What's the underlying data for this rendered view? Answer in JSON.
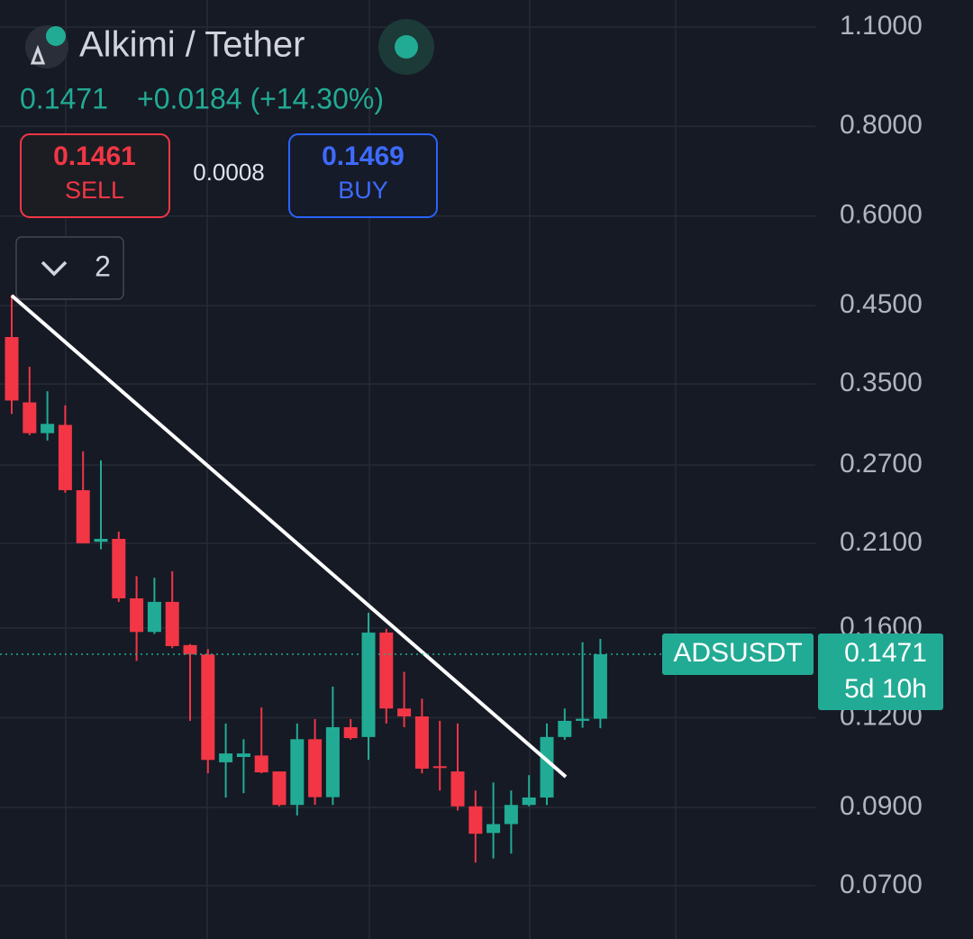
{
  "header": {
    "title": "Alkimi / Tether",
    "price": "0.1471",
    "change": "+0.0184 (+14.30%)",
    "sell_price": "0.1461",
    "sell_label": "SELL",
    "spread": "0.0008",
    "buy_price": "0.1469",
    "buy_label": "BUY",
    "indicators_count": "2"
  },
  "chart_data": {
    "type": "candlestick",
    "log_scale": true,
    "grid": true,
    "up_color": "#22ab94",
    "down_color": "#f23645",
    "ylim": [
      0.059,
      1.2
    ],
    "yticks": [
      {
        "value": 1.1,
        "label": "1.1000"
      },
      {
        "value": 0.8,
        "label": "0.8000"
      },
      {
        "value": 0.6,
        "label": "0.6000"
      },
      {
        "value": 0.45,
        "label": "0.4500"
      },
      {
        "value": 0.35,
        "label": "0.3500"
      },
      {
        "value": 0.27,
        "label": "0.2700"
      },
      {
        "value": 0.21,
        "label": "0.2100"
      },
      {
        "value": 0.16,
        "label": "0.1600"
      },
      {
        "value": 0.12,
        "label": "0.1200"
      },
      {
        "value": 0.09,
        "label": "0.0900"
      },
      {
        "value": 0.07,
        "label": "0.0700"
      }
    ],
    "last_price": 0.1471,
    "countdown": "5d 10h",
    "series": [
      {
        "name": "ADSUSDT",
        "open": [
          0.407,
          0.33,
          0.299,
          0.307,
          0.249,
          0.211,
          0.213,
          0.176,
          0.158,
          0.174,
          0.1515,
          0.147,
          0.104,
          0.1058,
          0.1063,
          0.101,
          0.0907,
          0.112,
          0.093,
          0.1164,
          0.1128,
          0.1577,
          0.1236,
          0.1205,
          0.1027,
          0.101,
          0.0903,
          0.0829,
          0.0853,
          0.0907,
          0.0929,
          0.1128,
          0.1188,
          0.1196
        ],
        "high": [
          0.466,
          0.37,
          0.342,
          0.327,
          0.282,
          0.274,
          0.218,
          0.189,
          0.188,
          0.192,
          0.152,
          0.1495,
          0.1178,
          0.112,
          0.124,
          0.101,
          0.1178,
          0.1195,
          0.1326,
          0.1195,
          0.168,
          0.1595,
          0.139,
          0.1276,
          0.1188,
          0.1178,
          0.095,
          0.0975,
          0.095,
          0.0998,
          0.1178,
          0.1236,
          0.1529,
          0.1545
        ],
        "low": [
          0.318,
          0.297,
          0.292,
          0.247,
          0.21,
          0.206,
          0.174,
          0.144,
          0.157,
          0.15,
          0.1188,
          0.1004,
          0.0929,
          0.0942,
          0.1004,
          0.0903,
          0.0877,
          0.0907,
          0.0907,
          0.1118,
          0.1048,
          0.1178,
          0.1164,
          0.1004,
          0.095,
          0.0891,
          0.0754,
          0.0764,
          0.0776,
          0.0903,
          0.0907,
          0.1118,
          0.1162,
          0.116
        ],
        "close": [
          0.332,
          0.299,
          0.308,
          0.249,
          0.21,
          0.213,
          0.176,
          0.158,
          0.174,
          0.151,
          0.147,
          0.1048,
          0.107,
          0.107,
          0.1007,
          0.0907,
          0.112,
          0.093,
          0.1164,
          0.1124,
          0.1577,
          0.1236,
          0.1205,
          0.1019,
          0.1023,
          0.0903,
          0.0827,
          0.0853,
          0.0907,
          0.0929,
          0.1128,
          0.1188,
          0.1196,
          0.1471
        ]
      }
    ]
  }
}
